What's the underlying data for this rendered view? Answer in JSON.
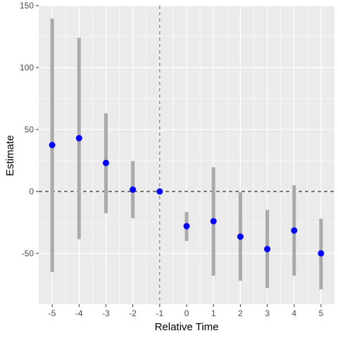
{
  "chart_data": {
    "type": "scatter",
    "xlabel": "Relative Time",
    "ylabel": "Estimate",
    "x": [
      -5,
      -4,
      -3,
      -2,
      -1,
      0,
      1,
      2,
      3,
      4,
      5
    ],
    "series": [
      {
        "estimate": [
          37.5,
          43,
          23,
          1.5,
          0,
          -28,
          -24,
          -36.5,
          -46.5,
          -31.5,
          -50
        ],
        "lower": [
          -65,
          -38.5,
          -17.5,
          -21.5,
          0,
          -40,
          -68,
          -72,
          -78,
          -68,
          -79
        ],
        "upper": [
          139.5,
          124,
          63,
          24.5,
          0,
          -16.5,
          19.5,
          -0.5,
          -15,
          5,
          -22
        ]
      }
    ],
    "x_ticks": [
      "-5",
      "-4",
      "-3",
      "-2",
      "-1",
      "0",
      "1",
      "2",
      "3",
      "4",
      "5"
    ],
    "y_ticks": [
      {
        "value": -50,
        "label": "-50"
      },
      {
        "value": 0,
        "label": "0"
      },
      {
        "value": 50,
        "label": "50"
      },
      {
        "value": 100,
        "label": "100"
      },
      {
        "value": 150,
        "label": "150"
      }
    ],
    "xlim": [
      -5.5,
      5.5
    ],
    "ylim": [
      -91,
      150
    ],
    "reference_lines": {
      "horizontal_y": 0,
      "vertical_x": -1
    },
    "grid": true,
    "colors": {
      "panel": "#ebebeb",
      "grid": "#ffffff",
      "point": "#0000ff",
      "interval": "#aaaaaa",
      "reference": "#333333"
    }
  }
}
